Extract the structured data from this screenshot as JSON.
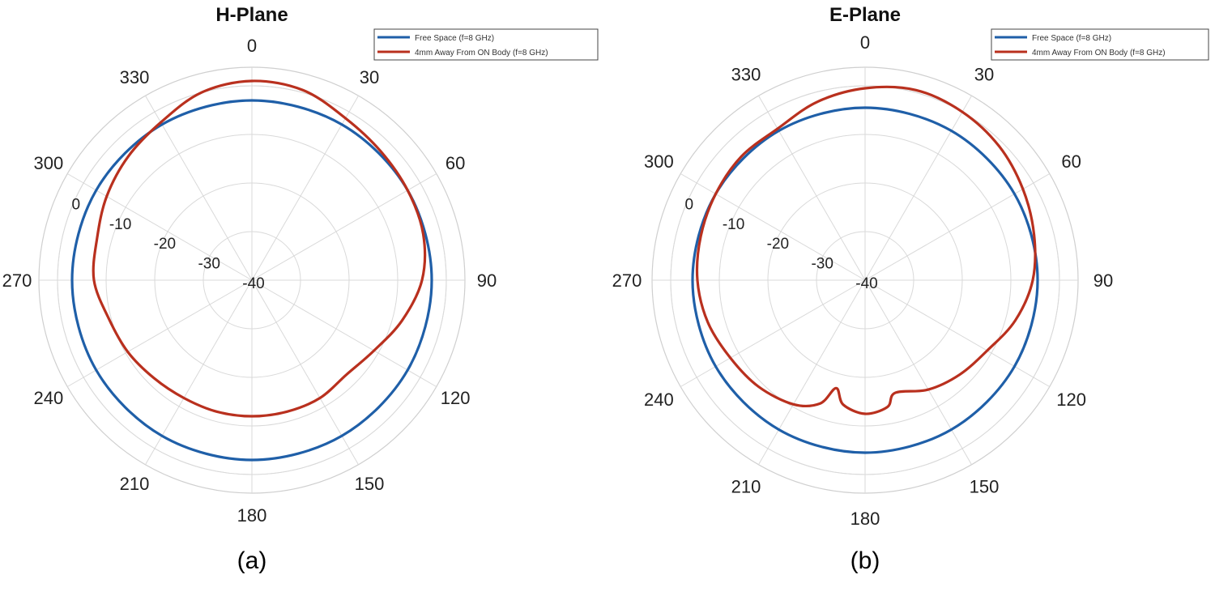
{
  "chart_data": [
    {
      "type": "polar-line",
      "title": "H-Plane",
      "panel_label": "(a)",
      "angle_direction": "clockwise-from-top",
      "angle_tick_labels": [
        "0",
        "30",
        "60",
        "90",
        "120",
        "150",
        "180",
        "210",
        "240",
        "270",
        "300",
        "330"
      ],
      "radial_tick_labels": [
        "-40",
        "-30",
        "-20",
        "-10",
        "0"
      ],
      "rlim": [
        -40,
        0
      ],
      "grid": true,
      "legend_position": "top-right",
      "series": [
        {
          "name": "Free Space (f=8 GHz)",
          "color": "#1f5fa8",
          "theta": [
            0,
            30,
            60,
            90,
            120,
            150,
            180,
            210,
            240,
            270,
            300,
            330
          ],
          "values": [
            -3,
            -3,
            -3,
            -3,
            -3,
            -3,
            -3,
            -3,
            -3,
            -3,
            -3,
            -3
          ]
        },
        {
          "name": "4mm Away From ON Body (f=8 GHz)",
          "color": "#b9301e",
          "theta": [
            0,
            15,
            30,
            45,
            60,
            75,
            90,
            105,
            120,
            135,
            150,
            165,
            180,
            195,
            210,
            225,
            240,
            255,
            270,
            285,
            300,
            315,
            330,
            345
          ],
          "values": [
            1,
            0.5,
            -1.5,
            -2.5,
            -3,
            -3.5,
            -5,
            -8,
            -11,
            -12.5,
            -12,
            -12,
            -12,
            -12,
            -12,
            -11.5,
            -10.5,
            -9.5,
            -7.5,
            -7,
            -5.5,
            -4,
            -2.5,
            0
          ]
        }
      ]
    },
    {
      "type": "polar-line",
      "title": "E-Plane",
      "panel_label": "(b)",
      "angle_direction": "clockwise-from-top",
      "angle_tick_labels": [
        "0",
        "30",
        "60",
        "90",
        "120",
        "150",
        "180",
        "210",
        "240",
        "270",
        "300",
        "330"
      ],
      "radial_tick_labels": [
        "-40",
        "-30",
        "-20",
        "-10",
        "0"
      ],
      "rlim": [
        -40,
        0
      ],
      "grid": true,
      "legend_position": "top-right",
      "series": [
        {
          "name": "Free Space (f=8 GHz)",
          "color": "#1f5fa8",
          "theta": [
            0,
            30,
            60,
            90,
            120,
            150,
            180,
            210,
            240,
            270,
            300,
            330
          ],
          "values": [
            -4.5,
            -4.5,
            -4.5,
            -4.5,
            -4.5,
            -4.5,
            -4.5,
            -4.5,
            -4.5,
            -4.5,
            -4.5,
            -4.5
          ]
        },
        {
          "name": "4mm Away From ON Body (f=8 GHz)",
          "color": "#b9301e",
          "theta": [
            0,
            15,
            30,
            45,
            60,
            75,
            90,
            105,
            120,
            135,
            150,
            165,
            170,
            180,
            190,
            195,
            200,
            210,
            225,
            240,
            255,
            270,
            285,
            300,
            315,
            330,
            345
          ],
          "values": [
            -0.5,
            0.5,
            0,
            -1,
            -2.5,
            -4,
            -5.5,
            -8,
            -11,
            -12.5,
            -14,
            -16,
            -13.5,
            -12.5,
            -14,
            -17,
            -13,
            -10.5,
            -9,
            -8,
            -6.5,
            -5.5,
            -5,
            -4.5,
            -4,
            -4,
            -2
          ]
        }
      ]
    }
  ]
}
